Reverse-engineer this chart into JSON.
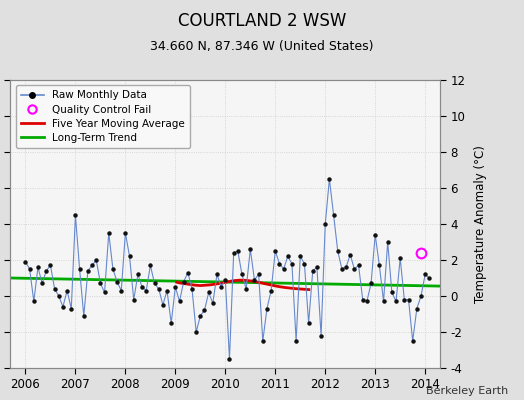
{
  "title": "COURTLAND 2 WSW",
  "subtitle": "34.660 N, 87.346 W (United States)",
  "credit": "Berkeley Earth",
  "ylabel": "Temperature Anomaly (°C)",
  "ylim": [
    -4,
    12
  ],
  "yticks": [
    -4,
    -2,
    0,
    2,
    4,
    6,
    8,
    10,
    12
  ],
  "xlim": [
    2005.7,
    2014.3
  ],
  "xticks": [
    2006,
    2007,
    2008,
    2009,
    2010,
    2011,
    2012,
    2013,
    2014
  ],
  "bg_color": "#e0e0e0",
  "plot_bg": "#f5f5f5",
  "raw_color": "#6688cc",
  "raw_marker_color": "#111111",
  "ma_color": "#dd0000",
  "trend_color": "#00aa00",
  "qc_color": "#ff00ff",
  "raw_monthly": [
    2006.0,
    1.9,
    2006.083,
    1.5,
    2006.167,
    -0.3,
    2006.25,
    1.6,
    2006.333,
    0.7,
    2006.417,
    1.4,
    2006.5,
    1.7,
    2006.583,
    0.4,
    2006.667,
    0.0,
    2006.75,
    -0.6,
    2006.833,
    0.3,
    2006.917,
    -0.7,
    2007.0,
    4.5,
    2007.083,
    1.5,
    2007.167,
    -1.1,
    2007.25,
    1.4,
    2007.333,
    1.7,
    2007.417,
    2.0,
    2007.5,
    0.7,
    2007.583,
    0.2,
    2007.667,
    3.5,
    2007.75,
    1.5,
    2007.833,
    0.8,
    2007.917,
    0.3,
    2008.0,
    3.5,
    2008.083,
    2.2,
    2008.167,
    -0.2,
    2008.25,
    1.2,
    2008.333,
    0.5,
    2008.417,
    0.3,
    2008.5,
    1.7,
    2008.583,
    0.7,
    2008.667,
    0.4,
    2008.75,
    -0.5,
    2008.833,
    0.3,
    2008.917,
    -1.5,
    2009.0,
    0.5,
    2009.083,
    -0.3,
    2009.167,
    0.8,
    2009.25,
    1.3,
    2009.333,
    0.4,
    2009.417,
    -2.0,
    2009.5,
    -1.1,
    2009.583,
    -0.8,
    2009.667,
    0.2,
    2009.75,
    -0.4,
    2009.833,
    1.2,
    2009.917,
    0.5,
    2010.0,
    0.9,
    2010.083,
    -3.5,
    2010.167,
    2.4,
    2010.25,
    2.5,
    2010.333,
    1.2,
    2010.417,
    0.4,
    2010.5,
    2.6,
    2010.583,
    0.9,
    2010.667,
    1.2,
    2010.75,
    -2.5,
    2010.833,
    -0.7,
    2010.917,
    0.3,
    2011.0,
    2.5,
    2011.083,
    1.8,
    2011.167,
    1.5,
    2011.25,
    2.2,
    2011.333,
    1.8,
    2011.417,
    -2.5,
    2011.5,
    2.2,
    2011.583,
    1.8,
    2011.667,
    -1.5,
    2011.75,
    1.4,
    2011.833,
    1.6,
    2011.917,
    -2.2,
    2012.0,
    4.0,
    2012.083,
    6.5,
    2012.167,
    4.5,
    2012.25,
    2.5,
    2012.333,
    1.5,
    2012.417,
    1.6,
    2012.5,
    2.3,
    2012.583,
    1.5,
    2012.667,
    1.7,
    2012.75,
    -0.2,
    2012.833,
    -0.3,
    2012.917,
    0.7,
    2013.0,
    3.4,
    2013.083,
    1.7,
    2013.167,
    -0.3,
    2013.25,
    3.0,
    2013.333,
    0.2,
    2013.417,
    -0.3,
    2013.5,
    2.1,
    2013.583,
    -0.2,
    2013.667,
    -0.2,
    2013.75,
    -2.5,
    2013.833,
    -0.7,
    2013.917,
    0.0,
    2014.0,
    1.2,
    2014.083,
    1.0
  ],
  "moving_avg": [
    2009.0,
    0.78,
    2009.1,
    0.72,
    2009.2,
    0.68,
    2009.3,
    0.64,
    2009.4,
    0.6,
    2009.5,
    0.58,
    2009.6,
    0.6,
    2009.7,
    0.62,
    2009.8,
    0.66,
    2009.9,
    0.7,
    2010.0,
    0.76,
    2010.1,
    0.82,
    2010.2,
    0.86,
    2010.3,
    0.88,
    2010.4,
    0.87,
    2010.5,
    0.84,
    2010.6,
    0.8,
    2010.7,
    0.74,
    2010.8,
    0.68,
    2010.9,
    0.62,
    2011.0,
    0.56,
    2011.1,
    0.51,
    2011.2,
    0.47,
    2011.3,
    0.44,
    2011.4,
    0.41,
    2011.5,
    0.39,
    2011.6,
    0.37,
    2011.7,
    0.35
  ],
  "trend_x": [
    2005.7,
    2014.3
  ],
  "trend_y": [
    1.0,
    0.55
  ],
  "qc_points": [
    [
      2013.917,
      2.4
    ]
  ]
}
